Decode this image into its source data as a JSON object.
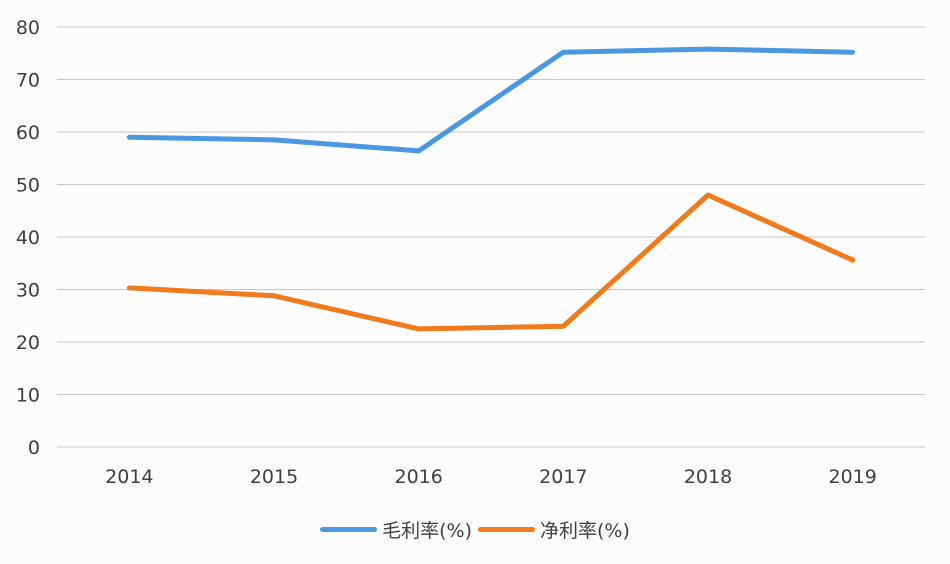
{
  "chart_data": {
    "type": "line",
    "title": "",
    "xlabel": "",
    "ylabel": "",
    "categories": [
      "2014",
      "2015",
      "2016",
      "2017",
      "2018",
      "2019"
    ],
    "series": [
      {
        "name": "毛利率(%)",
        "color": "#4a98e0",
        "values": [
          59.0,
          58.5,
          56.4,
          75.2,
          75.8,
          75.2
        ]
      },
      {
        "name": "净利率(%)",
        "color": "#f07a1c",
        "values": [
          30.3,
          28.8,
          22.5,
          23.0,
          48.0,
          35.6
        ]
      }
    ],
    "ylim": [
      0,
      80
    ],
    "yticks": [
      0,
      10,
      20,
      30,
      40,
      50,
      60,
      70,
      80
    ],
    "grid": true,
    "legend_position": "bottom"
  }
}
